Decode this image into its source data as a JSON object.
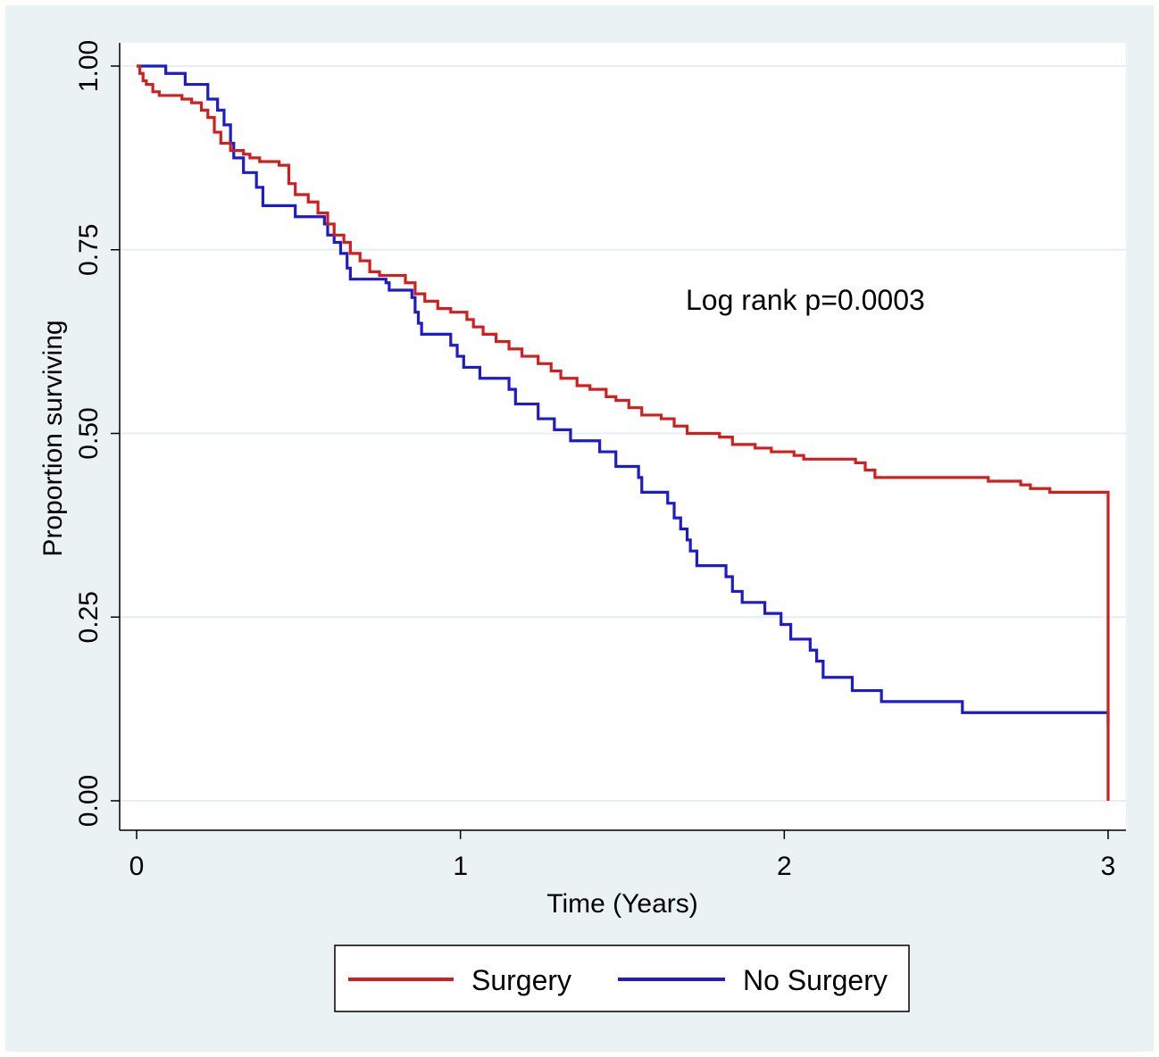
{
  "chart_data": {
    "type": "line",
    "step": true,
    "xlabel": "Time (Years)",
    "ylabel": "Proportion surviving",
    "xlim": [
      0,
      3
    ],
    "ylim": [
      0,
      1
    ],
    "x_ticks": [
      "0",
      "1",
      "2",
      "3"
    ],
    "y_ticks": [
      "0.00",
      "0.25",
      "0.50",
      "0.75",
      "1.00"
    ],
    "grid": true,
    "annotation": "Log rank p=0.0003",
    "legend_position": "bottom",
    "series": [
      {
        "name": "Surgery",
        "color": "#d11f1f",
        "points": [
          [
            0,
            1.0
          ],
          [
            0.01,
            0.99
          ],
          [
            0.02,
            0.98
          ],
          [
            0.03,
            0.975
          ],
          [
            0.05,
            0.965
          ],
          [
            0.07,
            0.96
          ],
          [
            0.14,
            0.955
          ],
          [
            0.17,
            0.95
          ],
          [
            0.2,
            0.94
          ],
          [
            0.22,
            0.93
          ],
          [
            0.24,
            0.91
          ],
          [
            0.26,
            0.895
          ],
          [
            0.29,
            0.885
          ],
          [
            0.33,
            0.88
          ],
          [
            0.35,
            0.875
          ],
          [
            0.38,
            0.87
          ],
          [
            0.44,
            0.865
          ],
          [
            0.47,
            0.84
          ],
          [
            0.49,
            0.825
          ],
          [
            0.53,
            0.815
          ],
          [
            0.56,
            0.8
          ],
          [
            0.59,
            0.785
          ],
          [
            0.61,
            0.77
          ],
          [
            0.64,
            0.76
          ],
          [
            0.66,
            0.745
          ],
          [
            0.69,
            0.735
          ],
          [
            0.72,
            0.72
          ],
          [
            0.75,
            0.715
          ],
          [
            0.83,
            0.705
          ],
          [
            0.86,
            0.69
          ],
          [
            0.89,
            0.68
          ],
          [
            0.93,
            0.67
          ],
          [
            0.97,
            0.665
          ],
          [
            1.02,
            0.655
          ],
          [
            1.04,
            0.645
          ],
          [
            1.07,
            0.635
          ],
          [
            1.11,
            0.625
          ],
          [
            1.15,
            0.615
          ],
          [
            1.19,
            0.605
          ],
          [
            1.24,
            0.595
          ],
          [
            1.28,
            0.585
          ],
          [
            1.31,
            0.575
          ],
          [
            1.36,
            0.565
          ],
          [
            1.4,
            0.56
          ],
          [
            1.45,
            0.55
          ],
          [
            1.48,
            0.545
          ],
          [
            1.52,
            0.535
          ],
          [
            1.56,
            0.525
          ],
          [
            1.62,
            0.52
          ],
          [
            1.66,
            0.51
          ],
          [
            1.7,
            0.5
          ],
          [
            1.77,
            0.5
          ],
          [
            1.8,
            0.495
          ],
          [
            1.84,
            0.485
          ],
          [
            1.91,
            0.48
          ],
          [
            1.96,
            0.475
          ],
          [
            2.03,
            0.47
          ],
          [
            2.06,
            0.465
          ],
          [
            2.22,
            0.46
          ],
          [
            2.25,
            0.45
          ],
          [
            2.28,
            0.44
          ],
          [
            2.6,
            0.44
          ],
          [
            2.63,
            0.435
          ],
          [
            2.73,
            0.43
          ],
          [
            2.76,
            0.425
          ],
          [
            2.82,
            0.42
          ],
          [
            3.0,
            0.42
          ],
          [
            3.0,
            0.0
          ]
        ]
      },
      {
        "name": "No Surgery",
        "color": "#1c1cc8",
        "points": [
          [
            0,
            1.0
          ],
          [
            0.09,
            0.99
          ],
          [
            0.15,
            0.975
          ],
          [
            0.22,
            0.955
          ],
          [
            0.25,
            0.94
          ],
          [
            0.27,
            0.92
          ],
          [
            0.29,
            0.895
          ],
          [
            0.3,
            0.875
          ],
          [
            0.33,
            0.855
          ],
          [
            0.37,
            0.835
          ],
          [
            0.39,
            0.81
          ],
          [
            0.49,
            0.795
          ],
          [
            0.58,
            0.785
          ],
          [
            0.59,
            0.77
          ],
          [
            0.61,
            0.76
          ],
          [
            0.63,
            0.745
          ],
          [
            0.65,
            0.725
          ],
          [
            0.66,
            0.71
          ],
          [
            0.77,
            0.705
          ],
          [
            0.78,
            0.695
          ],
          [
            0.85,
            0.685
          ],
          [
            0.86,
            0.665
          ],
          [
            0.87,
            0.65
          ],
          [
            0.88,
            0.635
          ],
          [
            0.97,
            0.62
          ],
          [
            0.99,
            0.605
          ],
          [
            1.01,
            0.59
          ],
          [
            1.06,
            0.575
          ],
          [
            1.15,
            0.56
          ],
          [
            1.17,
            0.54
          ],
          [
            1.24,
            0.52
          ],
          [
            1.29,
            0.505
          ],
          [
            1.34,
            0.49
          ],
          [
            1.43,
            0.475
          ],
          [
            1.48,
            0.455
          ],
          [
            1.55,
            0.44
          ],
          [
            1.56,
            0.42
          ],
          [
            1.64,
            0.405
          ],
          [
            1.66,
            0.385
          ],
          [
            1.68,
            0.37
          ],
          [
            1.7,
            0.355
          ],
          [
            1.71,
            0.34
          ],
          [
            1.73,
            0.32
          ],
          [
            1.82,
            0.305
          ],
          [
            1.84,
            0.285
          ],
          [
            1.87,
            0.27
          ],
          [
            1.94,
            0.255
          ],
          [
            1.99,
            0.24
          ],
          [
            2.02,
            0.22
          ],
          [
            2.08,
            0.205
          ],
          [
            2.1,
            0.19
          ],
          [
            2.12,
            0.168
          ],
          [
            2.21,
            0.15
          ],
          [
            2.3,
            0.135
          ],
          [
            2.55,
            0.12
          ],
          [
            3.0,
            0.12
          ],
          [
            3.0,
            0.105
          ]
        ]
      }
    ]
  }
}
